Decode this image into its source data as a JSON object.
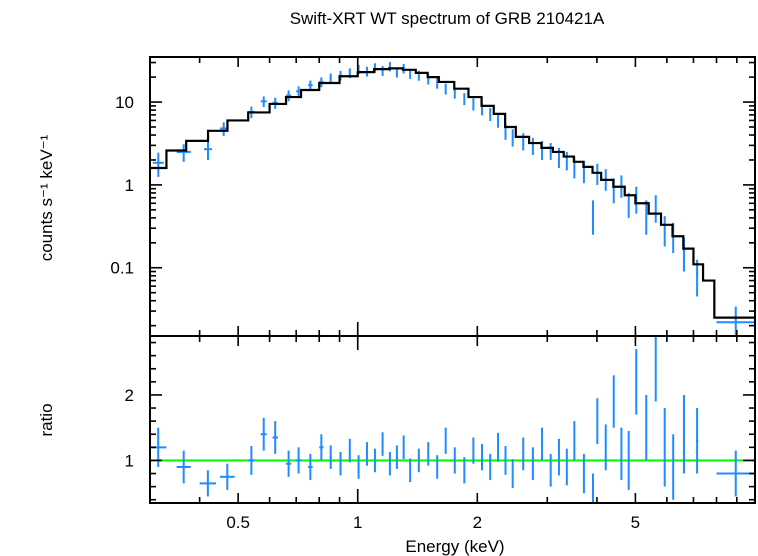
{
  "chart_data": {
    "type": "scatter",
    "title": "Swift-XRT WT spectrum of GRB 210421A",
    "xlabel": "Energy (keV)",
    "x_scale": "log",
    "xlim": [
      0.3,
      10
    ],
    "x_ticks": [
      0.5,
      1,
      2,
      5
    ],
    "x_tick_labels": [
      "0.5",
      "1",
      "2",
      "5"
    ],
    "colors": {
      "data": "#1e8cff",
      "model": "#000000",
      "ratio_line": "#00ff00",
      "axes": "#000000"
    },
    "panels": [
      {
        "name": "spectrum",
        "ylabel": "counts s⁻¹ keV⁻¹",
        "y_scale": "log",
        "ylim": [
          0.015,
          35
        ],
        "y_ticks": [
          0.1,
          1,
          10
        ],
        "y_tick_labels": [
          "0.1",
          "1",
          "10"
        ],
        "series": [
          {
            "kind": "data",
            "points": [
              [
                0.305,
                0.325,
                1.85,
                0.6
              ],
              [
                0.35,
                0.38,
                2.5,
                0.6
              ],
              [
                0.41,
                0.43,
                2.7,
                0.7
              ],
              [
                0.45,
                0.47,
                4.8,
                0.9
              ],
              [
                0.53,
                0.55,
                7.6,
                1.2
              ],
              [
                0.57,
                0.59,
                10.2,
                1.5
              ],
              [
                0.61,
                0.63,
                9.8,
                1.5
              ],
              [
                0.66,
                0.68,
                12.0,
                1.8
              ],
              [
                0.7,
                0.72,
                13.5,
                2.0
              ],
              [
                0.75,
                0.77,
                16.0,
                2.2
              ],
              [
                0.8,
                0.82,
                17.5,
                2.4
              ],
              [
                0.85,
                0.86,
                19.5,
                2.6
              ],
              [
                0.9,
                0.91,
                21.0,
                2.8
              ],
              [
                0.95,
                0.96,
                22.5,
                3.0
              ],
              [
                1.0,
                1.01,
                25.0,
                3.2
              ],
              [
                1.05,
                1.06,
                23.5,
                3.2
              ],
              [
                1.1,
                1.11,
                26.0,
                3.4
              ],
              [
                1.15,
                1.16,
                24.0,
                3.3
              ],
              [
                1.2,
                1.21,
                27.0,
                3.5
              ],
              [
                1.25,
                1.26,
                23.0,
                3.2
              ],
              [
                1.3,
                1.31,
                25.5,
                3.4
              ],
              [
                1.35,
                1.36,
                22.0,
                3.0
              ],
              [
                1.42,
                1.43,
                21.0,
                2.9
              ],
              [
                1.5,
                1.51,
                19.0,
                2.7
              ],
              [
                1.58,
                1.59,
                17.0,
                2.5
              ],
              [
                1.66,
                1.67,
                14.5,
                2.2
              ],
              [
                1.75,
                1.76,
                13.0,
                2.0
              ],
              [
                1.85,
                1.86,
                11.0,
                1.8
              ],
              [
                1.95,
                1.96,
                9.5,
                1.6
              ],
              [
                2.05,
                2.06,
                8.3,
                1.4
              ],
              [
                2.15,
                2.16,
                7.2,
                1.3
              ],
              [
                2.25,
                2.26,
                6.0,
                1.1
              ],
              [
                2.35,
                2.36,
                4.5,
                1.0
              ],
              [
                2.45,
                2.46,
                3.8,
                0.9
              ],
              [
                2.6,
                2.62,
                3.4,
                0.8
              ],
              [
                2.75,
                2.77,
                3.0,
                0.7
              ],
              [
                2.9,
                2.92,
                2.7,
                0.7
              ],
              [
                3.05,
                3.07,
                2.6,
                0.6
              ],
              [
                3.2,
                3.22,
                2.2,
                0.6
              ],
              [
                3.35,
                3.37,
                2.0,
                0.5
              ],
              [
                3.5,
                3.52,
                1.7,
                0.5
              ],
              [
                3.7,
                3.72,
                1.5,
                0.45
              ],
              [
                3.9,
                3.92,
                0.45,
                0.2
              ],
              [
                4.0,
                4.02,
                1.4,
                0.4
              ],
              [
                4.2,
                4.22,
                1.2,
                0.35
              ],
              [
                4.4,
                4.42,
                0.9,
                0.3
              ],
              [
                4.6,
                4.62,
                1.0,
                0.3
              ],
              [
                4.8,
                4.82,
                0.6,
                0.2
              ],
              [
                5.0,
                5.05,
                0.7,
                0.25
              ],
              [
                5.3,
                5.35,
                0.45,
                0.2
              ],
              [
                5.6,
                5.65,
                0.55,
                0.2
              ],
              [
                5.9,
                5.95,
                0.3,
                0.12
              ],
              [
                6.2,
                6.25,
                0.25,
                0.1
              ],
              [
                6.6,
                6.65,
                0.16,
                0.07
              ],
              [
                7.1,
                7.2,
                0.085,
                0.04
              ],
              [
                8.0,
                10.0,
                0.022,
                0.012
              ]
            ]
          },
          {
            "kind": "model",
            "steps": [
              [
                0.3,
                1.6
              ],
              [
                0.33,
                2.6
              ],
              [
                0.37,
                3.4
              ],
              [
                0.42,
                4.5
              ],
              [
                0.47,
                6.0
              ],
              [
                0.53,
                7.5
              ],
              [
                0.6,
                9.5
              ],
              [
                0.66,
                11.5
              ],
              [
                0.72,
                14.0
              ],
              [
                0.8,
                17.0
              ],
              [
                0.9,
                20.5
              ],
              [
                1.0,
                23.0
              ],
              [
                1.1,
                25.0
              ],
              [
                1.2,
                25.5
              ],
              [
                1.3,
                24.5
              ],
              [
                1.4,
                22.5
              ],
              [
                1.5,
                20.0
              ],
              [
                1.6,
                17.5
              ],
              [
                1.75,
                14.5
              ],
              [
                1.9,
                11.5
              ],
              [
                2.05,
                9.0
              ],
              [
                2.2,
                7.2
              ],
              [
                2.35,
                5.0
              ],
              [
                2.5,
                3.8
              ],
              [
                2.7,
                3.2
              ],
              [
                2.9,
                2.8
              ],
              [
                3.1,
                2.5
              ],
              [
                3.3,
                2.2
              ],
              [
                3.5,
                1.9
              ],
              [
                3.7,
                1.65
              ],
              [
                3.9,
                1.4
              ],
              [
                4.1,
                1.15
              ],
              [
                4.4,
                0.95
              ],
              [
                4.7,
                0.75
              ],
              [
                5.0,
                0.6
              ],
              [
                5.4,
                0.45
              ],
              [
                5.8,
                0.33
              ],
              [
                6.2,
                0.24
              ],
              [
                6.6,
                0.17
              ],
              [
                7.0,
                0.11
              ],
              [
                7.4,
                0.07
              ],
              [
                7.9,
                0.025
              ],
              [
                10.0,
                0.025
              ]
            ]
          }
        ]
      },
      {
        "name": "ratio",
        "ylabel": "ratio",
        "y_scale": "linear",
        "ylim": [
          0.35,
          2.9
        ],
        "y_ticks": [
          1,
          2
        ],
        "y_tick_labels": [
          "1",
          "2"
        ],
        "reference_line": 1,
        "series": [
          {
            "kind": "data",
            "points": [
              [
                0.3,
                0.33,
                1.2,
                0.3
              ],
              [
                0.35,
                0.38,
                0.9,
                0.25
              ],
              [
                0.4,
                0.44,
                0.65,
                0.2
              ],
              [
                0.45,
                0.49,
                0.75,
                0.2
              ],
              [
                0.53,
                0.55,
                1.0,
                0.22
              ],
              [
                0.57,
                0.59,
                1.4,
                0.25
              ],
              [
                0.61,
                0.63,
                1.35,
                0.25
              ],
              [
                0.66,
                0.68,
                0.95,
                0.2
              ],
              [
                0.7,
                0.72,
                1.0,
                0.2
              ],
              [
                0.75,
                0.77,
                0.9,
                0.2
              ],
              [
                0.8,
                0.82,
                1.2,
                0.2
              ],
              [
                0.85,
                0.86,
                1.05,
                0.18
              ],
              [
                0.9,
                0.91,
                0.95,
                0.18
              ],
              [
                0.95,
                0.96,
                1.15,
                0.18
              ],
              [
                1.0,
                1.01,
                0.9,
                0.18
              ],
              [
                1.05,
                1.06,
                1.1,
                0.18
              ],
              [
                1.1,
                1.11,
                1.0,
                0.18
              ],
              [
                1.15,
                1.16,
                1.25,
                0.18
              ],
              [
                1.2,
                1.21,
                0.95,
                0.18
              ],
              [
                1.25,
                1.26,
                1.05,
                0.18
              ],
              [
                1.3,
                1.31,
                1.2,
                0.18
              ],
              [
                1.35,
                1.36,
                0.85,
                0.18
              ],
              [
                1.42,
                1.43,
                1.0,
                0.18
              ],
              [
                1.5,
                1.51,
                1.1,
                0.18
              ],
              [
                1.58,
                1.59,
                0.9,
                0.18
              ],
              [
                1.66,
                1.67,
                1.3,
                0.2
              ],
              [
                1.75,
                1.76,
                1.0,
                0.2
              ],
              [
                1.85,
                1.86,
                0.85,
                0.2
              ],
              [
                1.95,
                1.96,
                1.15,
                0.2
              ],
              [
                2.05,
                2.06,
                1.05,
                0.2
              ],
              [
                2.15,
                2.16,
                0.9,
                0.2
              ],
              [
                2.25,
                2.26,
                1.2,
                0.22
              ],
              [
                2.35,
                2.36,
                1.0,
                0.22
              ],
              [
                2.45,
                2.46,
                0.8,
                0.22
              ],
              [
                2.6,
                2.62,
                1.1,
                0.25
              ],
              [
                2.75,
                2.77,
                0.95,
                0.25
              ],
              [
                2.9,
                2.92,
                1.25,
                0.25
              ],
              [
                3.05,
                3.07,
                0.85,
                0.25
              ],
              [
                3.2,
                3.22,
                1.05,
                0.28
              ],
              [
                3.35,
                3.37,
                0.9,
                0.28
              ],
              [
                3.5,
                3.52,
                1.3,
                0.3
              ],
              [
                3.7,
                3.72,
                0.8,
                0.3
              ],
              [
                3.9,
                3.92,
                0.5,
                0.3
              ],
              [
                4.0,
                4.02,
                1.6,
                0.35
              ],
              [
                4.2,
                4.22,
                1.2,
                0.35
              ],
              [
                4.4,
                4.42,
                1.9,
                0.4
              ],
              [
                4.6,
                4.62,
                1.1,
                0.4
              ],
              [
                4.8,
                4.82,
                1.0,
                0.45
              ],
              [
                5.0,
                5.05,
                2.2,
                0.5
              ],
              [
                5.3,
                5.35,
                1.5,
                0.5
              ],
              [
                5.6,
                5.65,
                2.5,
                0.6
              ],
              [
                5.9,
                5.95,
                1.2,
                0.6
              ],
              [
                6.2,
                6.25,
                0.9,
                0.5
              ],
              [
                6.6,
                6.65,
                1.4,
                0.6
              ],
              [
                7.1,
                7.2,
                1.3,
                0.5
              ],
              [
                8.0,
                10.0,
                0.8,
                0.35
              ]
            ]
          }
        ]
      }
    ]
  }
}
